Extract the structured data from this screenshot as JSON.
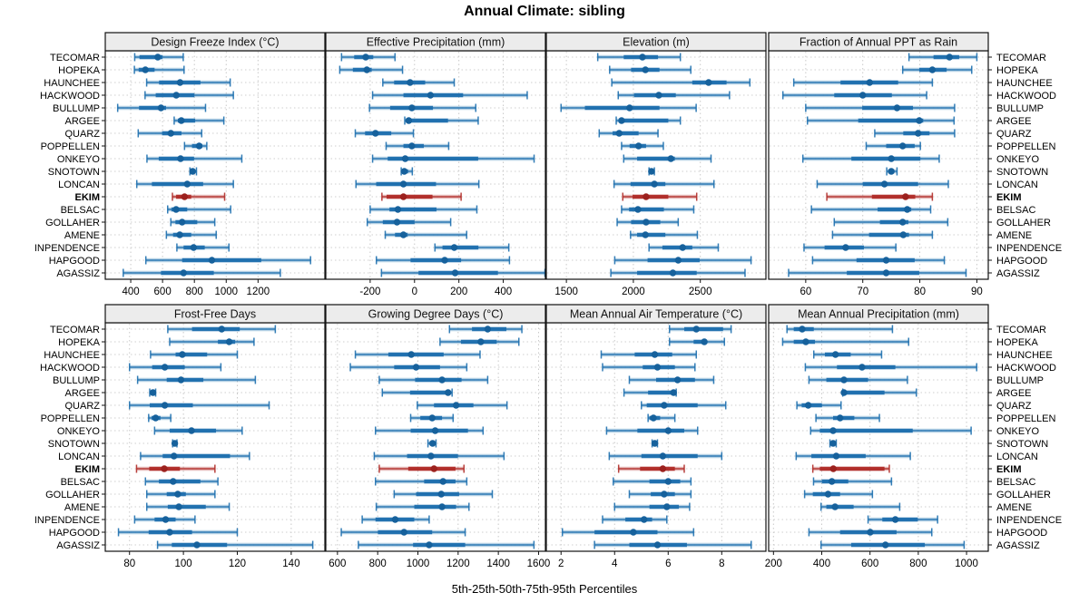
{
  "title": "Annual Climate: sibling",
  "footer": "5th-25th-50th-75th-95th Percentiles",
  "highlight_station": "EKIM",
  "colors": {
    "series_blue": "#1d6fae",
    "series_blue_dot": "#16619c",
    "highlight_red": "#b02c28",
    "highlight_red_dot": "#9c211e",
    "strip_fill": "#ececec",
    "panel_border": "#111111",
    "grid": "#c9c9c9",
    "text": "#000000"
  },
  "stations": [
    "TECOMAR",
    "HOPEKA",
    "HAUNCHEE",
    "HACKWOOD",
    "BULLUMP",
    "ARGEE",
    "QUARZ",
    "POPPELLEN",
    "ONKEYO",
    "SNOTOWN",
    "LONCAN",
    "EKIM",
    "BELSAC",
    "GOLLAHER",
    "AMENE",
    "INPENDENCE",
    "HAPGOOD",
    "AGASSIZ"
  ],
  "chart_data": {
    "type": "dotplot",
    "layout": {
      "rows": 2,
      "cols": 4
    },
    "percentile_labels": [
      "5th",
      "25th",
      "50th",
      "75th",
      "95th"
    ],
    "grid": "dotted",
    "panels": [
      {
        "title": "Design Freeze Index (°C)",
        "row": 0,
        "col": 0,
        "xmin": 240,
        "xmax": 1620,
        "ticks": [
          400,
          600,
          800,
          1000,
          1200
        ],
        "values": [
          [
            425,
            455,
            570,
            600,
            730
          ],
          [
            423,
            450,
            492,
            550,
            735
          ],
          [
            500,
            578,
            710,
            838,
            1025
          ],
          [
            490,
            557,
            686,
            800,
            1045
          ],
          [
            318,
            452,
            590,
            622,
            870
          ],
          [
            673,
            696,
            718,
            805,
            985
          ],
          [
            447,
            597,
            652,
            719,
            846
          ],
          [
            738,
            785,
            830,
            850,
            878
          ],
          [
            502,
            576,
            713,
            798,
            1098
          ],
          [
            772,
            780,
            789,
            796,
            813
          ],
          [
            438,
            533,
            755,
            855,
            1045
          ],
          [
            662,
            685,
            738,
            780,
            990
          ],
          [
            632,
            656,
            685,
            755,
            1028
          ],
          [
            652,
            681,
            723,
            818,
            928
          ],
          [
            624,
            666,
            708,
            780,
            937
          ],
          [
            690,
            732,
            795,
            865,
            1017
          ],
          [
            495,
            723,
            910,
            1220,
            1530
          ],
          [
            353,
            590,
            732,
            922,
            1340
          ]
        ]
      },
      {
        "title": "Effective Precipitation (mm)",
        "row": 0,
        "col": 1,
        "xmin": -400,
        "xmax": 590,
        "ticks": [
          -200,
          0,
          200,
          400
        ],
        "values": [
          [
            -329,
            -272,
            -220,
            -186,
            -88
          ],
          [
            -337,
            -278,
            -215,
            -193,
            -54
          ],
          [
            -143,
            -92,
            -20,
            48,
            179
          ],
          [
            -189,
            -50,
            72,
            219,
            508
          ],
          [
            -203,
            -110,
            -12,
            83,
            276
          ],
          [
            -44,
            -38,
            -26,
            151,
            287
          ],
          [
            -267,
            -223,
            -176,
            -105,
            -5
          ],
          [
            -128,
            -50,
            -12,
            42,
            154
          ],
          [
            -189,
            -121,
            -42,
            287,
            539
          ],
          [
            -60,
            -56,
            -46,
            -29,
            -10
          ],
          [
            -264,
            -173,
            -50,
            97,
            290
          ],
          [
            -147,
            -126,
            -50,
            81,
            210
          ],
          [
            -200,
            -113,
            -75,
            99,
            281
          ],
          [
            -213,
            -143,
            -79,
            0,
            163
          ],
          [
            -132,
            -88,
            -50,
            -31,
            235
          ],
          [
            92,
            126,
            179,
            288,
            425
          ],
          [
            -172,
            -18,
            136,
            210,
            428
          ],
          [
            -149,
            18,
            183,
            376,
            588
          ]
        ]
      },
      {
        "title": "Elevation (m)",
        "row": 0,
        "col": 2,
        "xmin": 1350,
        "xmax": 2990,
        "ticks": [
          1500,
          2000,
          2500
        ],
        "values": [
          [
            1734,
            1928,
            2068,
            2184,
            2351
          ],
          [
            1823,
            1983,
            2090,
            2195,
            2429
          ],
          [
            1839,
            2440,
            2562,
            2696,
            2870
          ],
          [
            1887,
            2005,
            2190,
            2317,
            2718
          ],
          [
            1460,
            1638,
            1972,
            2195,
            2469
          ],
          [
            1872,
            1898,
            1912,
            2261,
            2351
          ],
          [
            1745,
            1845,
            1894,
            2039,
            2184
          ],
          [
            1912,
            1972,
            2039,
            2095,
            2224
          ],
          [
            1928,
            2028,
            2280,
            2310,
            2580
          ],
          [
            2117,
            2123,
            2135,
            2146,
            2157
          ],
          [
            1856,
            1979,
            2157,
            2239,
            2602
          ],
          [
            1921,
            1994,
            2095,
            2261,
            2473
          ],
          [
            1912,
            1968,
            2034,
            2228,
            2451
          ],
          [
            1879,
            1983,
            2095,
            2201,
            2335
          ],
          [
            1979,
            2028,
            2090,
            2239,
            2478
          ],
          [
            2117,
            2217,
            2368,
            2440,
            2634
          ],
          [
            1861,
            2106,
            2335,
            2495,
            2879
          ],
          [
            1832,
            2028,
            2295,
            2473,
            2834
          ]
        ]
      },
      {
        "title": "Fraction of Annual PPT as Rain",
        "row": 0,
        "col": 3,
        "xmin": 53.5,
        "xmax": 92,
        "ticks": [
          60,
          70,
          80,
          90
        ],
        "values": [
          [
            78.1,
            82.4,
            85.2,
            86.9,
            90.0
          ],
          [
            77.0,
            79.9,
            82.2,
            84.7,
            89.1
          ],
          [
            57.9,
            66.1,
            71.2,
            76.2,
            82.2
          ],
          [
            56.0,
            65.0,
            70.0,
            75.1,
            81.2
          ],
          [
            60.0,
            69.9,
            76.0,
            78.8,
            86.1
          ],
          [
            60.3,
            69.2,
            79.9,
            80.6,
            86.0
          ],
          [
            72.1,
            77.1,
            79.7,
            81.7,
            86.1
          ],
          [
            70.6,
            74.1,
            77.0,
            79.1,
            80.1
          ],
          [
            59.5,
            68.0,
            75.0,
            80.1,
            83.4
          ],
          [
            74.2,
            74.6,
            75.0,
            75.5,
            76.0
          ],
          [
            62.0,
            70.0,
            73.8,
            79.7,
            85.0
          ],
          [
            63.7,
            71.6,
            77.5,
            79.2,
            82.2
          ],
          [
            61.0,
            72.6,
            77.8,
            78.5,
            81.9
          ],
          [
            65.0,
            73.0,
            77.0,
            78.0,
            84.9
          ],
          [
            64.7,
            71.1,
            77.1,
            78.1,
            82.2
          ],
          [
            59.7,
            63.3,
            67.0,
            70.2,
            75.8
          ],
          [
            61.2,
            68.9,
            74.1,
            79.1,
            84.3
          ],
          [
            57.0,
            67.2,
            74.1,
            79.9,
            88.1
          ]
        ]
      },
      {
        "title": "Frost-Free Days",
        "row": 1,
        "col": 0,
        "xmin": 71,
        "xmax": 152.5,
        "ticks": [
          80,
          100,
          120,
          140
        ],
        "values": [
          [
            94.2,
            103.2,
            114.2,
            120.9,
            134.1
          ],
          [
            94.9,
            112.8,
            117.0,
            119.2,
            126.2
          ],
          [
            87.8,
            97.1,
            99.6,
            108.8,
            120.0
          ],
          [
            80.0,
            88.4,
            93.1,
            100.5,
            113.9
          ],
          [
            83.0,
            93.8,
            99.1,
            107.4,
            126.7
          ],
          [
            87.5,
            88.0,
            88.7,
            89.2,
            89.7
          ],
          [
            80.0,
            87.5,
            93.1,
            103.5,
            131.8
          ],
          [
            87.1,
            88.2,
            89.7,
            91.5,
            95.3
          ],
          [
            89.3,
            94.9,
            103.0,
            112.1,
            121.8
          ],
          [
            96.0,
            96.5,
            96.8,
            97.2,
            97.6
          ],
          [
            84.1,
            92.3,
            96.5,
            117.3,
            124.5
          ],
          [
            82.6,
            87.3,
            92.9,
            98.7,
            111.7
          ],
          [
            85.9,
            90.9,
            96.2,
            106.3,
            112.8
          ],
          [
            86.4,
            93.8,
            97.9,
            100.9,
            111.7
          ],
          [
            86.4,
            94.2,
            98.3,
            108.3,
            117.0
          ],
          [
            81.9,
            89.3,
            93.4,
            97.1,
            104.3
          ],
          [
            75.9,
            87.1,
            94.9,
            103.2,
            120.0
          ],
          [
            90.4,
            95.7,
            105.0,
            116.2,
            148.0
          ]
        ]
      },
      {
        "title": "Growing Degree Days (°C)",
        "row": 1,
        "col": 1,
        "xmin": 542,
        "xmax": 1634,
        "ticks": [
          600,
          800,
          1000,
          1200,
          1400,
          1600
        ],
        "values": [
          [
            1157,
            1269,
            1347,
            1440,
            1517
          ],
          [
            1110,
            1214,
            1313,
            1392,
            1502
          ],
          [
            689,
            853,
            967,
            1128,
            1309
          ],
          [
            664,
            882,
            991,
            1110,
            1243
          ],
          [
            808,
            986,
            1120,
            1217,
            1347
          ],
          [
            823,
            961,
            1150,
            1160,
            1170
          ],
          [
            997,
            1080,
            1190,
            1276,
            1443
          ],
          [
            964,
            1012,
            1071,
            1120,
            1175
          ],
          [
            789,
            964,
            1086,
            1249,
            1324
          ],
          [
            1050,
            1061,
            1073,
            1086,
            1090
          ],
          [
            783,
            946,
            1065,
            1199,
            1428
          ],
          [
            808,
            952,
            1080,
            1187,
            1229
          ],
          [
            789,
            1031,
            1125,
            1187,
            1243
          ],
          [
            882,
            991,
            1116,
            1205,
            1370
          ],
          [
            793,
            982,
            1120,
            1190,
            1254
          ],
          [
            723,
            789,
            887,
            982,
            1056
          ],
          [
            619,
            801,
            931,
            1071,
            1235
          ],
          [
            704,
            976,
            1056,
            1235,
            1577
          ]
        ]
      },
      {
        "title": "Mean Annual Air Temperature (°C)",
        "row": 1,
        "col": 2,
        "xmin": 1.45,
        "xmax": 9.65,
        "ticks": [
          2,
          4,
          6,
          8
        ],
        "values": [
          [
            6.05,
            6.6,
            7.05,
            8.05,
            8.35
          ],
          [
            6.05,
            6.95,
            7.35,
            7.45,
            8.1
          ],
          [
            3.5,
            4.75,
            5.5,
            6.15,
            7.05
          ],
          [
            3.55,
            5.05,
            5.6,
            6.25,
            7.0
          ],
          [
            4.55,
            5.55,
            6.35,
            7.0,
            7.7
          ],
          [
            4.35,
            5.25,
            6.2,
            6.25,
            6.3
          ],
          [
            5.0,
            5.2,
            5.85,
            7.1,
            8.15
          ],
          [
            5.25,
            5.3,
            5.45,
            5.7,
            6.25
          ],
          [
            3.7,
            4.85,
            6.0,
            6.6,
            7.1
          ],
          [
            5.4,
            5.45,
            5.5,
            5.55,
            5.6
          ],
          [
            3.8,
            5.0,
            5.8,
            7.1,
            8.0
          ],
          [
            4.15,
            4.95,
            5.8,
            6.25,
            6.6
          ],
          [
            3.95,
            5.3,
            6.0,
            6.45,
            6.85
          ],
          [
            4.55,
            5.35,
            5.85,
            6.25,
            6.85
          ],
          [
            4.0,
            5.3,
            5.95,
            6.4,
            6.8
          ],
          [
            3.55,
            4.4,
            5.1,
            5.4,
            5.95
          ],
          [
            2.05,
            3.25,
            4.7,
            5.6,
            6.95
          ],
          [
            3.25,
            4.55,
            5.6,
            6.7,
            9.1
          ]
        ]
      },
      {
        "title": "Mean Annual Precipitation (mm)",
        "row": 1,
        "col": 3,
        "xmin": 180,
        "xmax": 1090,
        "ticks": [
          200,
          400,
          600,
          800,
          1000
        ],
        "values": [
          [
            256,
            284,
            319,
            367,
            693
          ],
          [
            238,
            284,
            334,
            372,
            760
          ],
          [
            367,
            413,
            457,
            520,
            648
          ],
          [
            332,
            463,
            567,
            705,
            1042
          ],
          [
            347,
            419,
            492,
            592,
            755
          ],
          [
            487,
            489,
            492,
            660,
            792
          ],
          [
            297,
            317,
            344,
            401,
            480
          ],
          [
            376,
            447,
            476,
            535,
            639
          ],
          [
            354,
            392,
            447,
            777,
            1019
          ],
          [
            434,
            441,
            447,
            452,
            460
          ],
          [
            294,
            357,
            460,
            582,
            767
          ],
          [
            363,
            392,
            448,
            660,
            680
          ],
          [
            366,
            401,
            442,
            510,
            689
          ],
          [
            329,
            363,
            426,
            476,
            610
          ],
          [
            397,
            419,
            455,
            532,
            723
          ],
          [
            592,
            651,
            705,
            798,
            880
          ],
          [
            347,
            476,
            601,
            710,
            856
          ],
          [
            397,
            522,
            664,
            827,
            990
          ]
        ]
      }
    ]
  }
}
